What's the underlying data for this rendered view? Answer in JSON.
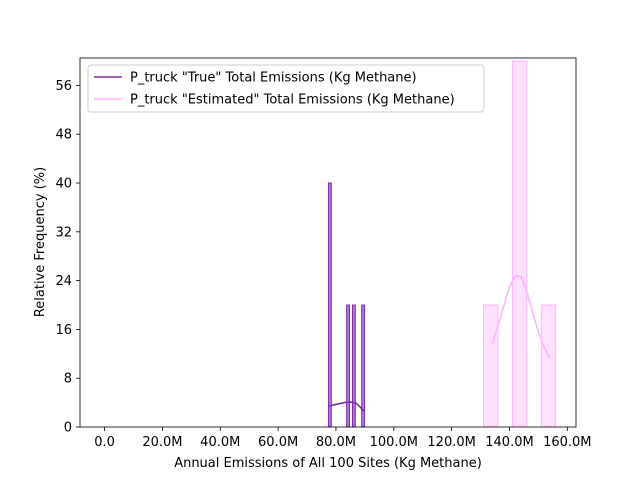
{
  "chart_data": {
    "type": "bar",
    "xlabel": "Annual Emissions of All 100 Sites (Kg Methane)",
    "ylabel": "Relative Frequency (%)",
    "xlim": [
      -8.5,
      163
    ],
    "ylim": [
      0,
      60.5
    ],
    "x_ticks": [
      0,
      20,
      40,
      60,
      80,
      100,
      120,
      140,
      160
    ],
    "x_tick_labels": [
      "0.0",
      "20.0M",
      "40.0M",
      "60.0M",
      "80.0M",
      "100.0M",
      "120.0M",
      "140.0M",
      "160.0M"
    ],
    "y_ticks": [
      0,
      8,
      16,
      24,
      32,
      40,
      48,
      56
    ],
    "y_tick_labels": [
      "0",
      "8",
      "16",
      "24",
      "32",
      "40",
      "48",
      "56"
    ],
    "x_unit": "million Kg Methane",
    "grid": false,
    "legend_position": "upper-left",
    "series": [
      {
        "name": "P_truck \"True\" Total Emissions (Kg Methane)",
        "color": "#7b2ca6",
        "bar_fill": "#b07ad0",
        "bins": [
          {
            "x0": 77.4,
            "x1": 78.4,
            "value": 40
          },
          {
            "x0": 83.7,
            "x1": 84.7,
            "value": 20
          },
          {
            "x0": 85.7,
            "x1": 86.7,
            "value": 20
          },
          {
            "x0": 88.9,
            "x1": 89.9,
            "value": 20
          }
        ],
        "kde": [
          [
            77.6,
            3.4
          ],
          [
            79,
            3.6
          ],
          [
            81,
            3.8
          ],
          [
            83,
            4.0
          ],
          [
            85,
            4.1
          ],
          [
            87,
            3.9
          ],
          [
            88.5,
            3.2
          ],
          [
            89.6,
            2.6
          ]
        ]
      },
      {
        "name": "P_truck \"Estimated\" Total Emissions (Kg Methane)",
        "color": "#ffb3ff",
        "bar_fill": "#ffe0ff",
        "bins": [
          {
            "x0": 131,
            "x1": 136,
            "value": 20
          },
          {
            "x0": 141,
            "x1": 146,
            "value": 60
          },
          {
            "x0": 151,
            "x1": 156,
            "value": 20
          }
        ],
        "kde": [
          [
            134,
            13.5
          ],
          [
            136,
            16.5
          ],
          [
            138,
            19.8
          ],
          [
            140,
            23.0
          ],
          [
            142,
            24.8
          ],
          [
            144,
            24.6
          ],
          [
            146,
            22.2
          ],
          [
            148,
            18.8
          ],
          [
            150,
            15.6
          ],
          [
            152,
            13.0
          ],
          [
            154,
            11.2
          ]
        ]
      }
    ]
  }
}
